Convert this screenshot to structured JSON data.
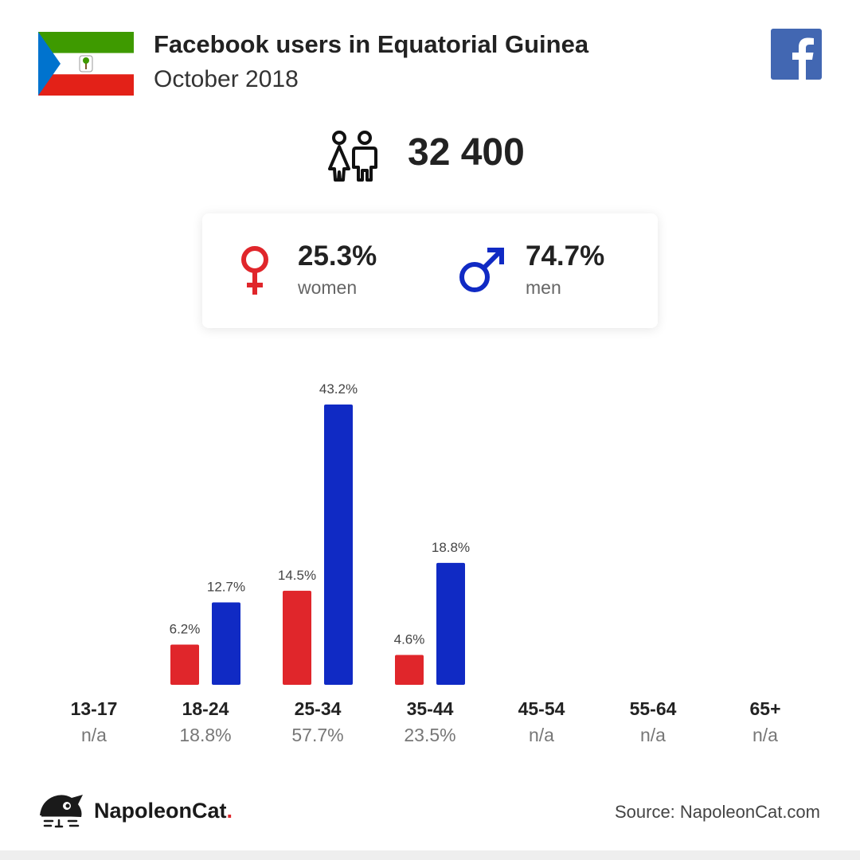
{
  "header": {
    "title": "Facebook users in Equatorial Guinea",
    "subtitle": "October 2018"
  },
  "summary": {
    "total_users": "32 400",
    "women_pct": "25.3%",
    "women_label": "women",
    "men_pct": "74.7%",
    "men_label": "men"
  },
  "colors": {
    "women": "#e0262b",
    "men": "#102ac4",
    "facebook": "#4267b2",
    "flag_green": "#3e9a00",
    "flag_red": "#e32118",
    "flag_blue": "#0073ce"
  },
  "chart_data": {
    "type": "bar",
    "categories": [
      "13-17",
      "18-24",
      "25-34",
      "35-44",
      "45-54",
      "55-64",
      "65+"
    ],
    "category_totals": [
      "n/a",
      "18.8%",
      "57.7%",
      "23.5%",
      "n/a",
      "n/a",
      "n/a"
    ],
    "series": [
      {
        "name": "women",
        "values": [
          null,
          6.2,
          14.5,
          4.6,
          null,
          null,
          null
        ],
        "labels": [
          "",
          "6.2%",
          "14.5%",
          "4.6%",
          "",
          "",
          ""
        ]
      },
      {
        "name": "men",
        "values": [
          null,
          12.7,
          43.2,
          18.8,
          null,
          null,
          null
        ],
        "labels": [
          "",
          "12.7%",
          "43.2%",
          "18.8%",
          "",
          "",
          ""
        ]
      }
    ],
    "title": "",
    "xlabel": "",
    "ylabel": "",
    "ylim": [
      0,
      43.2
    ],
    "grid": false,
    "legend": "none"
  },
  "footer": {
    "brand": "NapoleonCat",
    "brand_dot": ".",
    "source": "Source: NapoleonCat.com"
  }
}
